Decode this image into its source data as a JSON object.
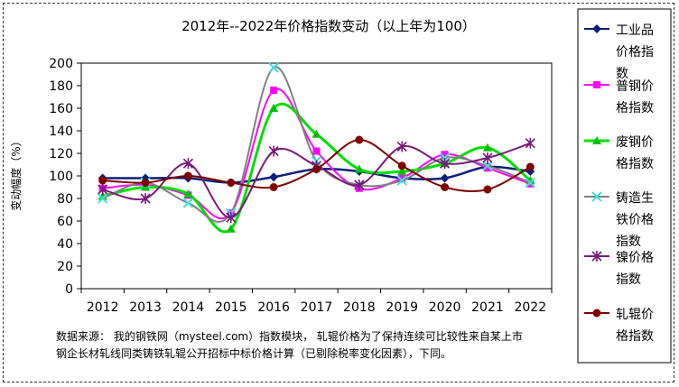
{
  "chart_data": {
    "type": "line",
    "title": "2012年--2022年价格指数变动（以上年为100）",
    "ylabel": "变动幅度（%）",
    "xlabel": "",
    "categories": [
      "2012",
      "2013",
      "2014",
      "2015",
      "2016",
      "2017",
      "2018",
      "2019",
      "2020",
      "2021",
      "2022"
    ],
    "ylim": [
      0,
      200
    ],
    "yticks": [
      0,
      20,
      40,
      60,
      80,
      100,
      120,
      140,
      160,
      180,
      200
    ],
    "grid": false,
    "smooth": true,
    "legend_position": "right",
    "series": [
      {
        "name": "工业品价格指数",
        "values": [
          98,
          98,
          98,
          94,
          99,
          106,
          104,
          98,
          98,
          108,
          104
        ],
        "color": "#0a1f7a",
        "marker": "diamond",
        "marker_color": "#0a1f7a"
      },
      {
        "name": "普钢价格指数",
        "values": [
          89,
          92,
          83,
          67,
          176,
          122,
          89,
          98,
          119,
          107,
          93
        ],
        "color": "#ff00ff",
        "marker": "square",
        "marker_color": "#ff00ff"
      },
      {
        "name": "废钢价格指数",
        "values": [
          82,
          90,
          84,
          53,
          160,
          137,
          106,
          104,
          111,
          125,
          96
        ],
        "color": "#00e000",
        "marker": "triangle",
        "marker_color": "#00c000"
      },
      {
        "name": "铸造生铁价格指数",
        "values": [
          80,
          94,
          76,
          67,
          196,
          113,
          92,
          96,
          116,
          109,
          94
        ],
        "color": "#808080",
        "marker": "x",
        "marker_color": "#40e0e0"
      },
      {
        "name": "镍价格指数",
        "values": [
          88,
          80,
          111,
          63,
          122,
          109,
          92,
          126,
          111,
          116,
          129
        ],
        "color": "#7a1a7a",
        "marker": "star",
        "marker_color": "#7a1a7a"
      },
      {
        "name": "轧辊价格指数",
        "values": [
          96,
          94,
          100,
          94,
          90,
          106,
          132,
          109,
          90,
          88,
          108
        ],
        "color": "#800000",
        "marker": "circle",
        "marker_color": "#800000"
      }
    ]
  },
  "note": {
    "line1": "数据来源： 我的钢铁网（mysteel.com）指数模块， 轧辊价格为了保持连续可比较性来自某上市",
    "line2": "钢企长材轧线同类铸铁轧辊公开招标中标价格计算（已剔除税率变化因素），下同。"
  },
  "legend_lines": [
    [
      "工业品",
      "价格指",
      "数"
    ],
    [
      "普钢价",
      "格指数"
    ],
    [
      "废钢价",
      "格指数"
    ],
    [
      "铸造生",
      "铁价格",
      "指数"
    ],
    [
      "镍价格",
      "指数"
    ],
    [
      "轧辊价",
      "格指数"
    ]
  ]
}
